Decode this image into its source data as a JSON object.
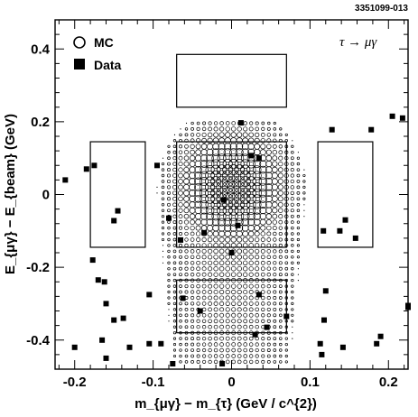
{
  "figure_tag": "3351099-013",
  "chart_data": {
    "type": "scatter",
    "decay_label": "τ → μγ",
    "xlabel": "m_{μγ} − m_{τ} (GeV / c^{2})",
    "ylabel": "E_{μγ} − E_{beam} (GeV)",
    "xlim": [
      -0.225,
      0.225
    ],
    "ylim": [
      -0.48,
      0.48
    ],
    "x_ticks": [
      -0.2,
      -0.1,
      0,
      0.1,
      0.2
    ],
    "x_tick_labels": [
      "-0.2",
      "-0.1",
      "0",
      "0.1",
      "0.2"
    ],
    "y_ticks": [
      -0.4,
      -0.2,
      0,
      0.2,
      0.4
    ],
    "y_tick_labels": [
      "-0.4",
      "-0.2",
      "0",
      "0.2",
      "0.4"
    ],
    "legend": [
      {
        "label": "MC",
        "marker": "open-circle"
      },
      {
        "label": "Data",
        "marker": "filled-square"
      }
    ],
    "regions": [
      {
        "x": [
          -0.07,
          0.07
        ],
        "y": [
          0.24,
          0.385
        ]
      },
      {
        "x": [
          -0.07,
          0.07
        ],
        "y": [
          -0.145,
          0.145
        ]
      },
      {
        "x": [
          -0.07,
          0.07
        ],
        "y": [
          -0.38,
          -0.235
        ]
      },
      {
        "x": [
          -0.18,
          -0.11
        ],
        "y": [
          -0.145,
          0.145
        ]
      },
      {
        "x": [
          0.11,
          0.18
        ],
        "y": [
          -0.145,
          0.145
        ]
      }
    ],
    "data_points": [
      [
        -0.212,
        0.04
      ],
      [
        -0.185,
        0.07
      ],
      [
        -0.175,
        0.08
      ],
      [
        -0.095,
        0.08
      ],
      [
        -0.145,
        -0.045
      ],
      [
        -0.15,
        -0.072
      ],
      [
        -0.08,
        -0.065
      ],
      [
        -0.177,
        -0.18
      ],
      [
        -0.17,
        -0.235
      ],
      [
        -0.162,
        -0.24
      ],
      [
        -0.16,
        -0.3
      ],
      [
        -0.15,
        -0.345
      ],
      [
        -0.138,
        -0.34
      ],
      [
        -0.165,
        -0.4
      ],
      [
        -0.2,
        -0.42
      ],
      [
        -0.16,
        -0.45
      ],
      [
        -0.13,
        -0.42
      ],
      [
        -0.105,
        -0.275
      ],
      [
        -0.105,
        -0.41
      ],
      [
        -0.09,
        -0.41
      ],
      [
        -0.075,
        -0.465
      ],
      [
        0.012,
        0.197
      ],
      [
        0.025,
        0.107
      ],
      [
        0.035,
        0.1
      ],
      [
        -0.01,
        -0.015
      ],
      [
        0.008,
        -0.085
      ],
      [
        -0.065,
        -0.125
      ],
      [
        -0.035,
        -0.105
      ],
      [
        -0.062,
        -0.285
      ],
      [
        -0.04,
        -0.32
      ],
      [
        0.0,
        -0.16
      ],
      [
        0.035,
        -0.275
      ],
      [
        0.07,
        -0.335
      ],
      [
        0.03,
        -0.385
      ],
      [
        0.045,
        -0.365
      ],
      [
        -0.012,
        -0.465
      ],
      [
        0.117,
        -0.1
      ],
      [
        0.145,
        -0.07
      ],
      [
        0.138,
        -0.1
      ],
      [
        0.158,
        -0.12
      ],
      [
        0.128,
        0.178
      ],
      [
        0.178,
        0.178
      ],
      [
        0.205,
        0.215
      ],
      [
        0.218,
        0.21
      ],
      [
        0.12,
        -0.265
      ],
      [
        0.113,
        -0.41
      ],
      [
        0.115,
        -0.44
      ],
      [
        0.142,
        -0.42
      ],
      [
        0.185,
        -0.41
      ],
      [
        0.19,
        -0.39
      ],
      [
        0.225,
        -0.305
      ],
      [
        0.225,
        -0.31
      ],
      [
        0.118,
        -0.345
      ]
    ],
    "mc_distribution": {
      "description_units": "data",
      "center": [
        0,
        0.02
      ],
      "sigma_x": 0.032,
      "sigma_y": 0.075,
      "grid_step_x": 0.0075,
      "grid_step_y": 0.016
    }
  }
}
